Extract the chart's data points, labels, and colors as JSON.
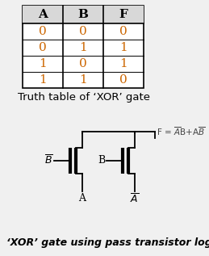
{
  "title": "Truth table of ‘XOR’ gate",
  "footer": "‘XOR’ gate using pass transistor logic",
  "table_headers": [
    "A",
    "B",
    "F"
  ],
  "table_data": [
    [
      0,
      0,
      0
    ],
    [
      0,
      1,
      1
    ],
    [
      1,
      0,
      1
    ],
    [
      1,
      1,
      0
    ]
  ],
  "header_color": "#000000",
  "data_color": "#cc6600",
  "bg_color": "#f0f0f0",
  "white": "#ffffff",
  "line_color": "#000000",
  "fs_header": 11,
  "fs_data": 11,
  "fs_caption": 9.5,
  "fs_label": 9,
  "fs_footer": 9
}
